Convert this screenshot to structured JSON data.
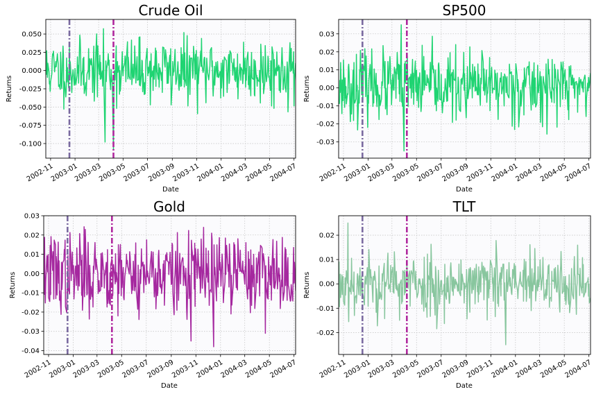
{
  "figure": {
    "background": "#ffffff",
    "plot_background": "#fbfbfd"
  },
  "chart_data": [
    {
      "type": "line",
      "title": "Crude Oil",
      "xlabel": "Date",
      "ylabel": "Returns",
      "xlim": [
        "2002-10-20",
        "2004-07-05"
      ],
      "ylim": [
        -0.12,
        0.07
      ],
      "yticks": [
        "0.050",
        "0.025",
        "0.000",
        "-0.025",
        "-0.050",
        "-0.075",
        "-0.100"
      ],
      "xticks": [
        "2002-11",
        "2003-01",
        "2003-03",
        "2003-05",
        "2003-07",
        "2003-09",
        "2003-11",
        "2004-01",
        "2004-03",
        "2004-05",
        "2004-07"
      ],
      "grid": true,
      "series": [
        {
          "color": "#1fd472",
          "std": 0.021,
          "mean": 0.0,
          "seed": 11
        }
      ],
      "spikes": [
        {
          "date": "2003-03-17",
          "value": -0.098
        },
        {
          "date": "2003-04-07",
          "value": -0.108
        }
      ],
      "vlines": [
        {
          "date": "2002-12-18",
          "style": "dashdot",
          "color": "#7a6aa0"
        },
        {
          "date": "2003-04-07",
          "style": "dashdot",
          "color": "#b0279e"
        }
      ]
    },
    {
      "type": "line",
      "title": "SP500",
      "xlabel": "Date",
      "ylabel": "Returns",
      "xlim": [
        "2002-10-20",
        "2004-07-05"
      ],
      "ylim": [
        -0.039,
        0.038
      ],
      "yticks": [
        "0.03",
        "0.02",
        "0.01",
        "0.00",
        "-0.01",
        "-0.02",
        "-0.03"
      ],
      "xticks": [
        "2002-11",
        "2003-01",
        "2003-03",
        "2003-05",
        "2003-07",
        "2003-09",
        "2003-11",
        "2004-01",
        "2004-03",
        "2004-05",
        "2004-07"
      ],
      "grid": true,
      "series": [
        {
          "color": "#1fd472",
          "std": 0.009,
          "mean": 0.001,
          "seed": 23
        }
      ],
      "spikes": [
        {
          "date": "2003-03-24",
          "value": 0.035
        },
        {
          "date": "2003-03-31",
          "value": -0.035
        }
      ],
      "vlines": [
        {
          "date": "2002-12-18",
          "style": "dashdot",
          "color": "#7a6aa0"
        },
        {
          "date": "2003-04-07",
          "style": "dashdot",
          "color": "#b0279e"
        }
      ]
    },
    {
      "type": "line",
      "title": "Gold",
      "xlabel": "Date",
      "ylabel": "Returns",
      "xlim": [
        "2002-10-20",
        "2004-07-05"
      ],
      "ylim": [
        -0.042,
        0.03
      ],
      "yticks": [
        "0.03",
        "0.02",
        "0.01",
        "0.00",
        "-0.01",
        "-0.02",
        "-0.03",
        "-0.04"
      ],
      "xticks": [
        "2002-11",
        "2003-01",
        "2003-03",
        "2003-05",
        "2003-07",
        "2003-09",
        "2003-11",
        "2004-01",
        "2004-03",
        "2004-05",
        "2004-07"
      ],
      "grid": true,
      "series": [
        {
          "color": "#a5289f",
          "std": 0.01,
          "mean": 0.0,
          "seed": 37
        }
      ],
      "spikes": [
        {
          "date": "2003-12-15",
          "value": -0.038
        },
        {
          "date": "2003-10-20",
          "value": -0.035
        }
      ],
      "vlines": [
        {
          "date": "2002-12-18",
          "style": "dashdot",
          "color": "#7a6aa0"
        },
        {
          "date": "2003-04-07",
          "style": "dashdot",
          "color": "#b0279e"
        }
      ]
    },
    {
      "type": "line",
      "title": "TLT",
      "xlabel": "Date",
      "ylabel": "Returns",
      "xlim": [
        "2002-10-20",
        "2004-07-05"
      ],
      "ylim": [
        -0.029,
        0.028
      ],
      "yticks": [
        "0.02",
        "0.01",
        "0.00",
        "-0.01",
        "-0.02"
      ],
      "xticks": [
        "2002-11",
        "2003-01",
        "2003-03",
        "2003-05",
        "2003-07",
        "2003-09",
        "2003-11",
        "2004-01",
        "2004-03",
        "2004-05",
        "2004-07"
      ],
      "grid": true,
      "series": [
        {
          "color": "#88c69e",
          "std": 0.0065,
          "mean": 0.0,
          "seed": 53
        }
      ],
      "spikes": [
        {
          "date": "2002-11-12",
          "value": 0.025
        },
        {
          "date": "2003-12-08",
          "value": -0.025
        }
      ],
      "vlines": [
        {
          "date": "2002-12-18",
          "style": "dashdot",
          "color": "#7a6aa0"
        },
        {
          "date": "2003-04-07",
          "style": "dashdot",
          "color": "#b0279e"
        }
      ]
    }
  ]
}
